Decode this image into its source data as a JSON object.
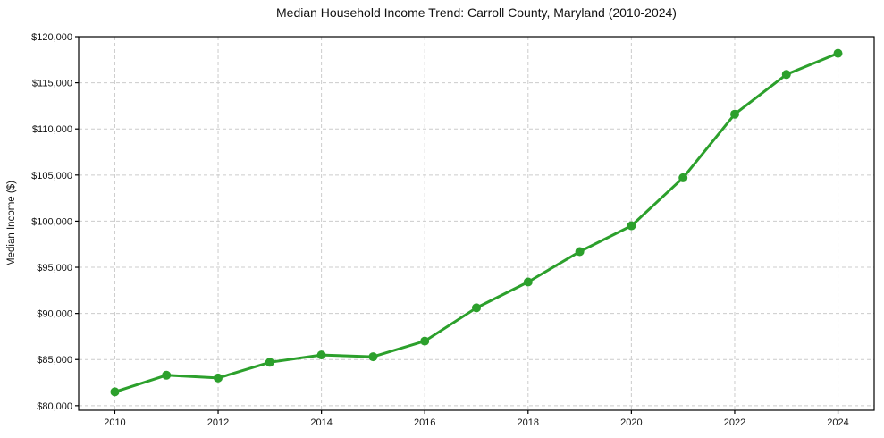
{
  "chart_data": {
    "type": "line",
    "title": "Median Household Income Trend: Carroll County, Maryland (2010-2024)",
    "ylabel": "Median Income ($)",
    "xlabel": "",
    "x": [
      2010,
      2011,
      2012,
      2013,
      2014,
      2015,
      2016,
      2017,
      2018,
      2019,
      2020,
      2021,
      2022,
      2023,
      2024
    ],
    "series": [
      {
        "color": "#2ca02c",
        "values": [
          81500,
          83300,
          83000,
          84700,
          85500,
          85300,
          87000,
          90600,
          93400,
          96700,
          99500,
          104700,
          111600,
          115900,
          118200
        ]
      }
    ],
    "xlim": [
      2009.3,
      2024.7
    ],
    "ylim": [
      79500,
      120000
    ],
    "xticks": [
      {
        "value": 2010,
        "label": "2010"
      },
      {
        "value": 2012,
        "label": "2012"
      },
      {
        "value": 2014,
        "label": "2014"
      },
      {
        "value": 2016,
        "label": "2016"
      },
      {
        "value": 2018,
        "label": "2018"
      },
      {
        "value": 2020,
        "label": "2020"
      },
      {
        "value": 2022,
        "label": "2022"
      },
      {
        "value": 2024,
        "label": "2024"
      }
    ],
    "yticks": [
      {
        "value": 80000,
        "label": "$80,000"
      },
      {
        "value": 85000,
        "label": "$85,000"
      },
      {
        "value": 90000,
        "label": "$90,000"
      },
      {
        "value": 95000,
        "label": "$95,000"
      },
      {
        "value": 100000,
        "label": "$100,000"
      },
      {
        "value": 105000,
        "label": "$105,000"
      },
      {
        "value": 110000,
        "label": "$110,000"
      },
      {
        "value": 115000,
        "label": "$115,000"
      },
      {
        "value": 120000,
        "label": "$120,000"
      }
    ],
    "grid": {
      "show": true,
      "color": "#cccccc",
      "style": "dashed"
    },
    "legend": {
      "show": false
    },
    "line_width": 3,
    "marker": {
      "shape": "circle",
      "radius": 5
    },
    "spine_color": "#000000",
    "background": "#ffffff"
  }
}
